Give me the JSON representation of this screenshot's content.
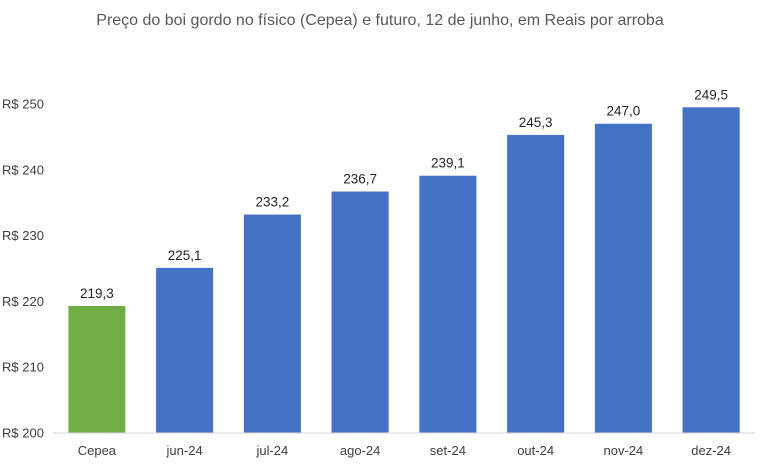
{
  "chart_data": {
    "type": "bar",
    "title": "Preço do boi gordo no físico (Cepea) e futuro, 12 de junho, em Reais por arroba",
    "categories": [
      "Cepea",
      "jun-24",
      "jul-24",
      "ago-24",
      "set-24",
      "out-24",
      "nov-24",
      "dez-24"
    ],
    "values": [
      219.3,
      225.1,
      233.2,
      236.7,
      239.1,
      245.3,
      247.0,
      249.5
    ],
    "value_labels": [
      "219,3",
      "225,1",
      "233,2",
      "236,7",
      "239,1",
      "245,3",
      "247,0",
      "249,5"
    ],
    "colors": [
      "#70AD47",
      "#4472C4",
      "#4472C4",
      "#4472C4",
      "#4472C4",
      "#4472C4",
      "#4472C4",
      "#4472C4"
    ],
    "xlabel": "",
    "ylabel": "",
    "ylim": [
      200,
      250
    ],
    "yticks": [
      200,
      210,
      220,
      230,
      240,
      250
    ],
    "ytick_labels": [
      "R$ 200",
      "R$ 210",
      "R$ 220",
      "R$ 230",
      "R$ 240",
      "R$ 250"
    ],
    "grid": false,
    "legend": "none"
  }
}
